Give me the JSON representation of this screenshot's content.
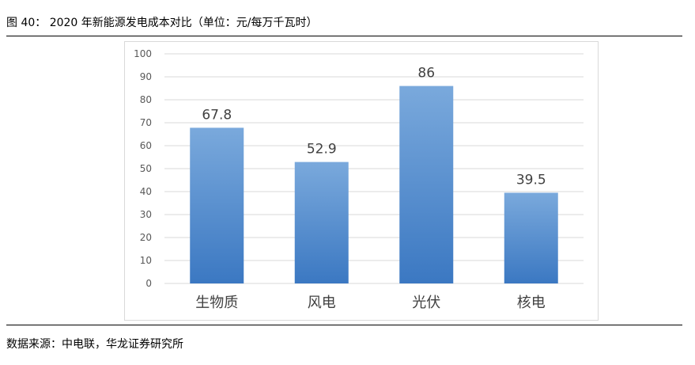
{
  "figure": {
    "title": "图 40：  2020 年新能源发电成本对比（单位：元/每万千瓦时）",
    "source": "数据来源：中电联，华龙证券研究所"
  },
  "chart_data": {
    "type": "bar",
    "categories": [
      "生物质",
      "风电",
      "光伏",
      "核电"
    ],
    "values": [
      67.8,
      52.9,
      86,
      39.5
    ],
    "value_labels": [
      "67.8",
      "52.9",
      "86",
      "39.5"
    ],
    "y_ticks": [
      "0",
      "10",
      "20",
      "30",
      "40",
      "50",
      "60",
      "70",
      "80",
      "90",
      "100"
    ],
    "ylim": [
      0,
      100
    ],
    "grid": true,
    "legend": "none",
    "colors": {
      "bar_light": "#7aa9dc",
      "bar_dark": "#3b78c2",
      "grid": "#d9d9d9",
      "tick_text": "#595959",
      "category_text": "#404040",
      "value_text": "#404040"
    }
  }
}
